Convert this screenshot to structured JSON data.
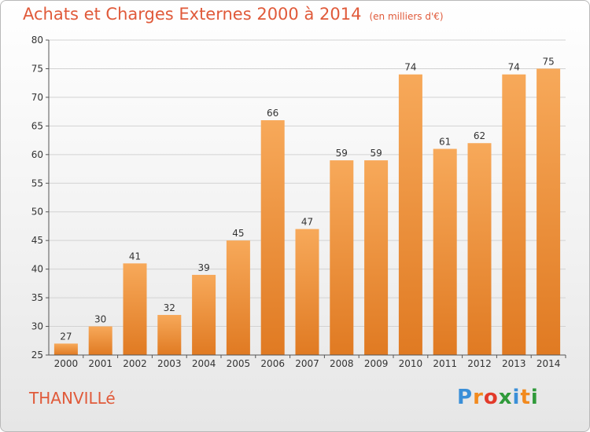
{
  "header": {
    "title": "Achats et Charges Externes 2000 à 2014",
    "unit_note": "(en milliers d'€)"
  },
  "footer": {
    "commune": "THANVILLé",
    "brand_letters": [
      {
        "char": "P",
        "color": "#3a8fd8"
      },
      {
        "char": "r",
        "color": "#f28a1e"
      },
      {
        "char": "o",
        "color": "#e23a2a"
      },
      {
        "char": "x",
        "color": "#2f9a3a"
      },
      {
        "char": "i",
        "color": "#3a8fd8"
      },
      {
        "char": "t",
        "color": "#f28a1e"
      },
      {
        "char": "i",
        "color": "#2f9a3a"
      }
    ]
  },
  "colors": {
    "bar_top": "#f7a95a",
    "bar_bottom": "#e07a22",
    "title": "#e05a3a",
    "grid": "#d2d2d2",
    "axis": "#555555"
  },
  "chart_data": {
    "type": "bar",
    "categories": [
      "2000",
      "2001",
      "2002",
      "2003",
      "2004",
      "2005",
      "2006",
      "2007",
      "2008",
      "2009",
      "2010",
      "2011",
      "2012",
      "2013",
      "2014"
    ],
    "values": [
      27,
      30,
      41,
      32,
      39,
      45,
      66,
      47,
      59,
      59,
      74,
      61,
      62,
      74,
      75
    ],
    "ylim": [
      25,
      80
    ],
    "yticks": [
      25,
      30,
      35,
      40,
      45,
      50,
      55,
      60,
      65,
      70,
      75,
      80
    ],
    "grid": true,
    "data_labels": true
  }
}
